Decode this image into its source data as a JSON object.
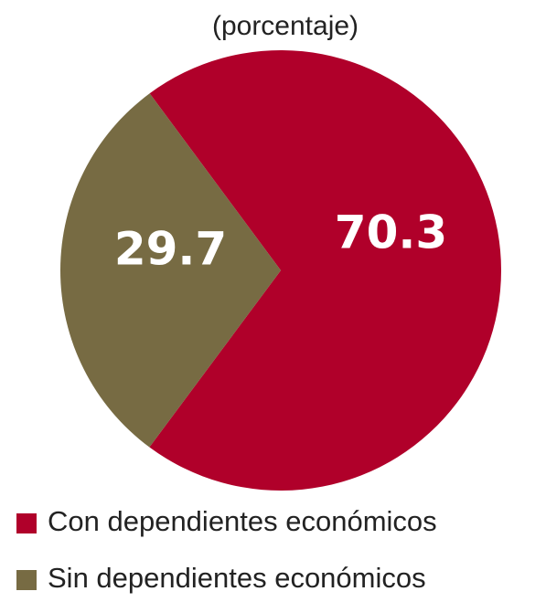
{
  "chart_data": {
    "type": "pie",
    "title": "(porcentaje)",
    "categories": [
      "Con dependientes económicos",
      "Sin dependientes económicos"
    ],
    "values": [
      70.3,
      29.7
    ],
    "colors": [
      "#b0002a",
      "#776b43"
    ]
  }
}
